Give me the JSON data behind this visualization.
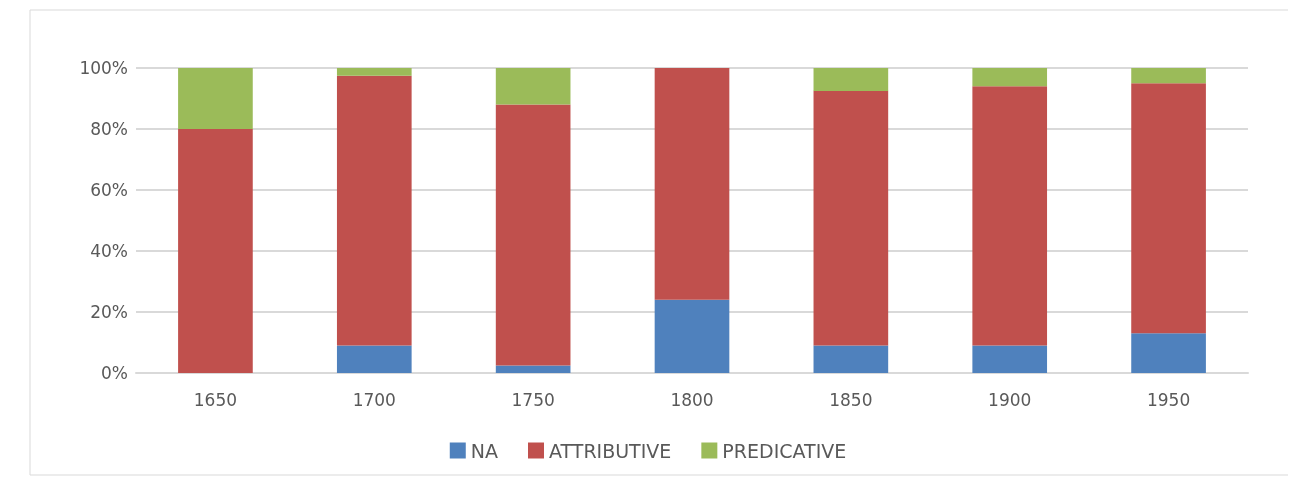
{
  "chart_data": {
    "type": "bar",
    "stacked": true,
    "categories": [
      "1650",
      "1700",
      "1750",
      "1800",
      "1850",
      "1900",
      "1950"
    ],
    "series": [
      {
        "name": "NA",
        "color": "#4f81bd",
        "values": [
          0,
          9,
          2.5,
          24,
          9,
          9,
          13
        ]
      },
      {
        "name": "ATTRIBUTIVE",
        "color": "#c0504d",
        "values": [
          80,
          88.5,
          85.5,
          76,
          83.5,
          85,
          82
        ]
      },
      {
        "name": "PREDICATIVE",
        "color": "#9bbb59",
        "values": [
          20,
          2.5,
          12,
          0,
          7.5,
          6,
          5
        ]
      }
    ],
    "ylim": [
      0,
      100
    ],
    "yticks": [
      {
        "value": 0,
        "label": "0%"
      },
      {
        "value": 20,
        "label": "20%"
      },
      {
        "value": 40,
        "label": "40%"
      },
      {
        "value": 60,
        "label": "60%"
      },
      {
        "value": 80,
        "label": "80%"
      },
      {
        "value": 100,
        "label": "100%"
      }
    ],
    "grid": "y",
    "legend": "bottom"
  }
}
